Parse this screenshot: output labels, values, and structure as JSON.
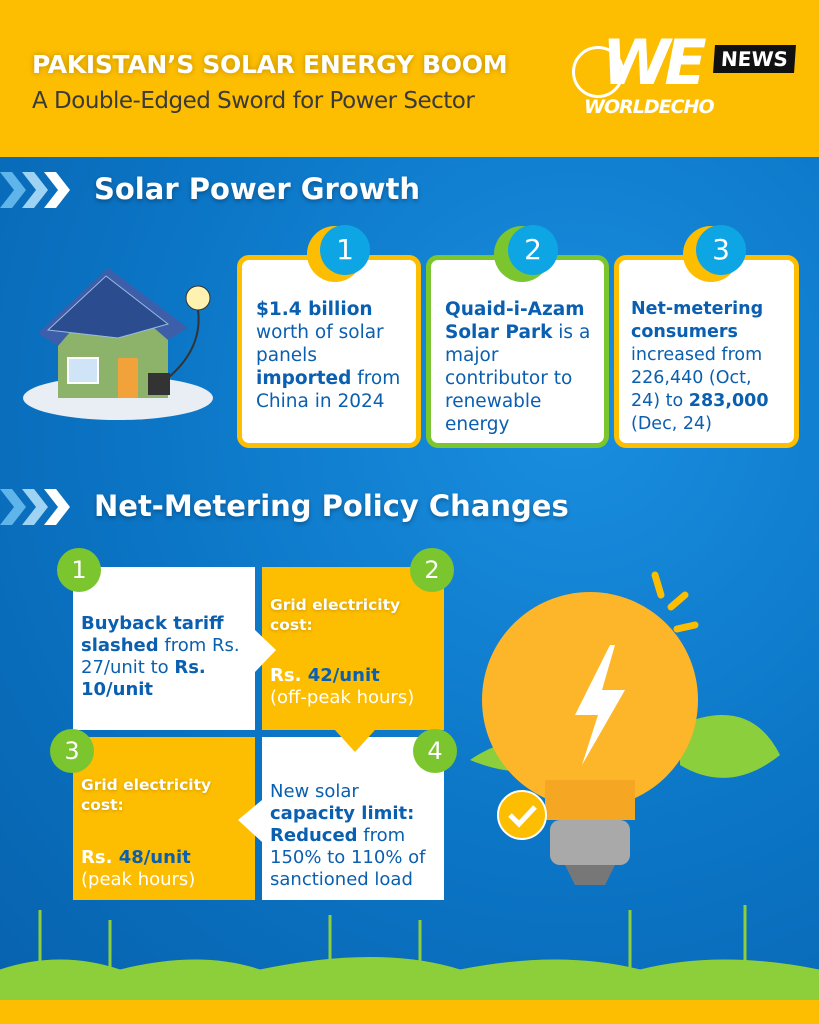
{
  "header": {
    "title": "PAKISTAN’S SOLAR ENERGY BOOM",
    "subtitle": "A Double-Edged Sword for Power Sector"
  },
  "logo": {
    "we": "WE",
    "news": "NEWS",
    "brand": "WORLDECHO"
  },
  "colors": {
    "yellow": "#fdbd00",
    "blue": "#0b74c4",
    "green": "#7bc52f",
    "text_blue": "#0a5fb0",
    "badge_blue": "#0ea5e4"
  },
  "section1": {
    "title": "Solar Power Growth",
    "cards": [
      {
        "number": "1",
        "b1": "$1.4 billion",
        "t1": " worth of solar panels ",
        "b2": "imported",
        "t2": " from China in 2024"
      },
      {
        "number": "2",
        "b1": "Quaid-i-Azam Solar Park",
        "t1": " is a major contributor to renewable energy"
      },
      {
        "number": "3",
        "b1": "Net-metering consumers",
        "t1": " increased from 226,440 (Oct, 24) to ",
        "b2": "283,000",
        "t2": " (Dec, 24)"
      }
    ]
  },
  "section2": {
    "title": "Net-Metering Policy Changes",
    "items": [
      {
        "number": "1",
        "b1": "Buyback tariff slashed",
        "t1": " from Rs. 27/unit to ",
        "b2": "Rs. 10/unit"
      },
      {
        "number": "2",
        "label": "Grid electricity cost:",
        "rs": "Rs. ",
        "price": "42/unit",
        "note": "(off-peak hours)"
      },
      {
        "number": "3",
        "label": "Grid electricity cost:",
        "rs": "Rs. ",
        "price": "48/unit",
        "note": "(peak hours)"
      },
      {
        "number": "4",
        "t0": "New solar ",
        "b1": "capacity limit: Reduced",
        "t1": " from 150% to 110% of sanctioned load"
      }
    ]
  }
}
